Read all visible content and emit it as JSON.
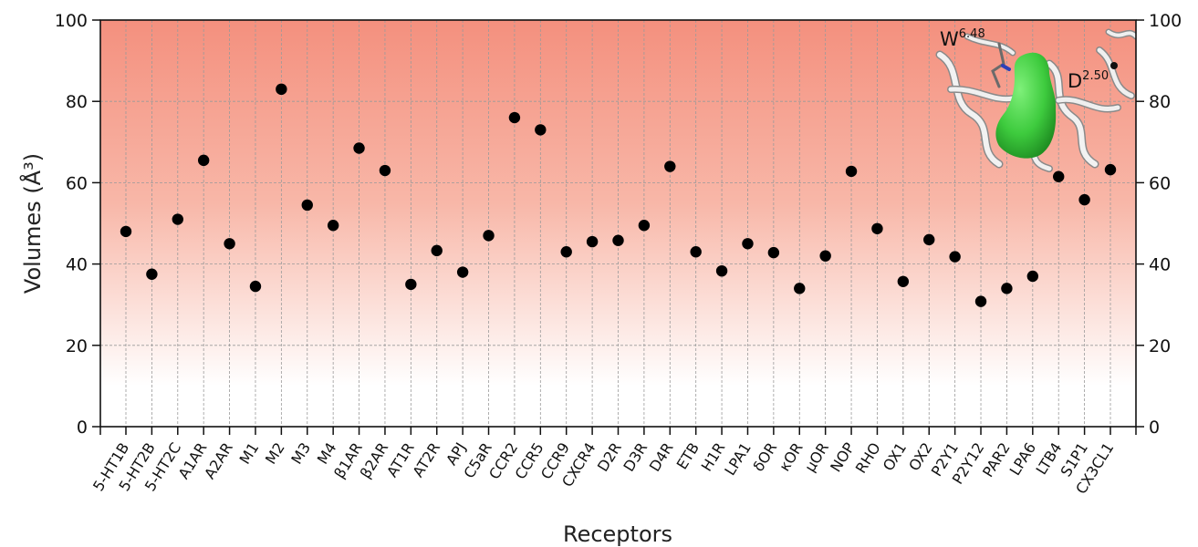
{
  "chart_data": {
    "type": "scatter",
    "xlabel": "Receptors",
    "ylabel": "Volumes (Å³)",
    "ylim": [
      0,
      100
    ],
    "yticks": [
      0,
      20,
      40,
      60,
      80,
      100
    ],
    "grid": true,
    "right_axis": true,
    "background": {
      "gradient_top": "#f4907e",
      "gradient_bottom": "#ffffff"
    },
    "marker_color": "#000000",
    "categories": [
      "5-HT1B",
      "5-HT2B",
      "5-HT2C",
      "A1AR",
      "A2AR",
      "M1",
      "M2",
      "M3",
      "M4",
      "β1AR",
      "β2AR",
      "AT1R",
      "AT2R",
      "APJ",
      "C5aR",
      "CCR2",
      "CCR5",
      "CCR9",
      "CXCR4",
      "D2R",
      "D3R",
      "D4R",
      "ETB",
      "H1R",
      "LPA1",
      "δOR",
      "κOR",
      "μOR",
      "NOP",
      "RHO",
      "OX1",
      "OX2",
      "P2Y1",
      "P2Y12",
      "PAR2",
      "LPA6",
      "LTB4",
      "S1P1",
      "CX3CL1"
    ],
    "values": [
      48,
      37.5,
      51,
      65.5,
      45,
      34.5,
      83,
      54.5,
      49.5,
      68.5,
      63,
      35,
      43.3,
      38,
      47,
      76,
      73,
      43,
      45.5,
      45.8,
      49.5,
      64,
      43,
      38.3,
      45,
      42.8,
      34,
      42,
      62.8,
      48.7,
      35.7,
      46,
      41.8,
      30.8,
      34,
      37,
      61.5,
      55.8,
      63.2
    ]
  },
  "inset": {
    "label1_base": "W",
    "label1_sup": "6.48",
    "label2_base": "D",
    "label2_sup": "2.50",
    "surface_color": "#3ecb3e"
  }
}
